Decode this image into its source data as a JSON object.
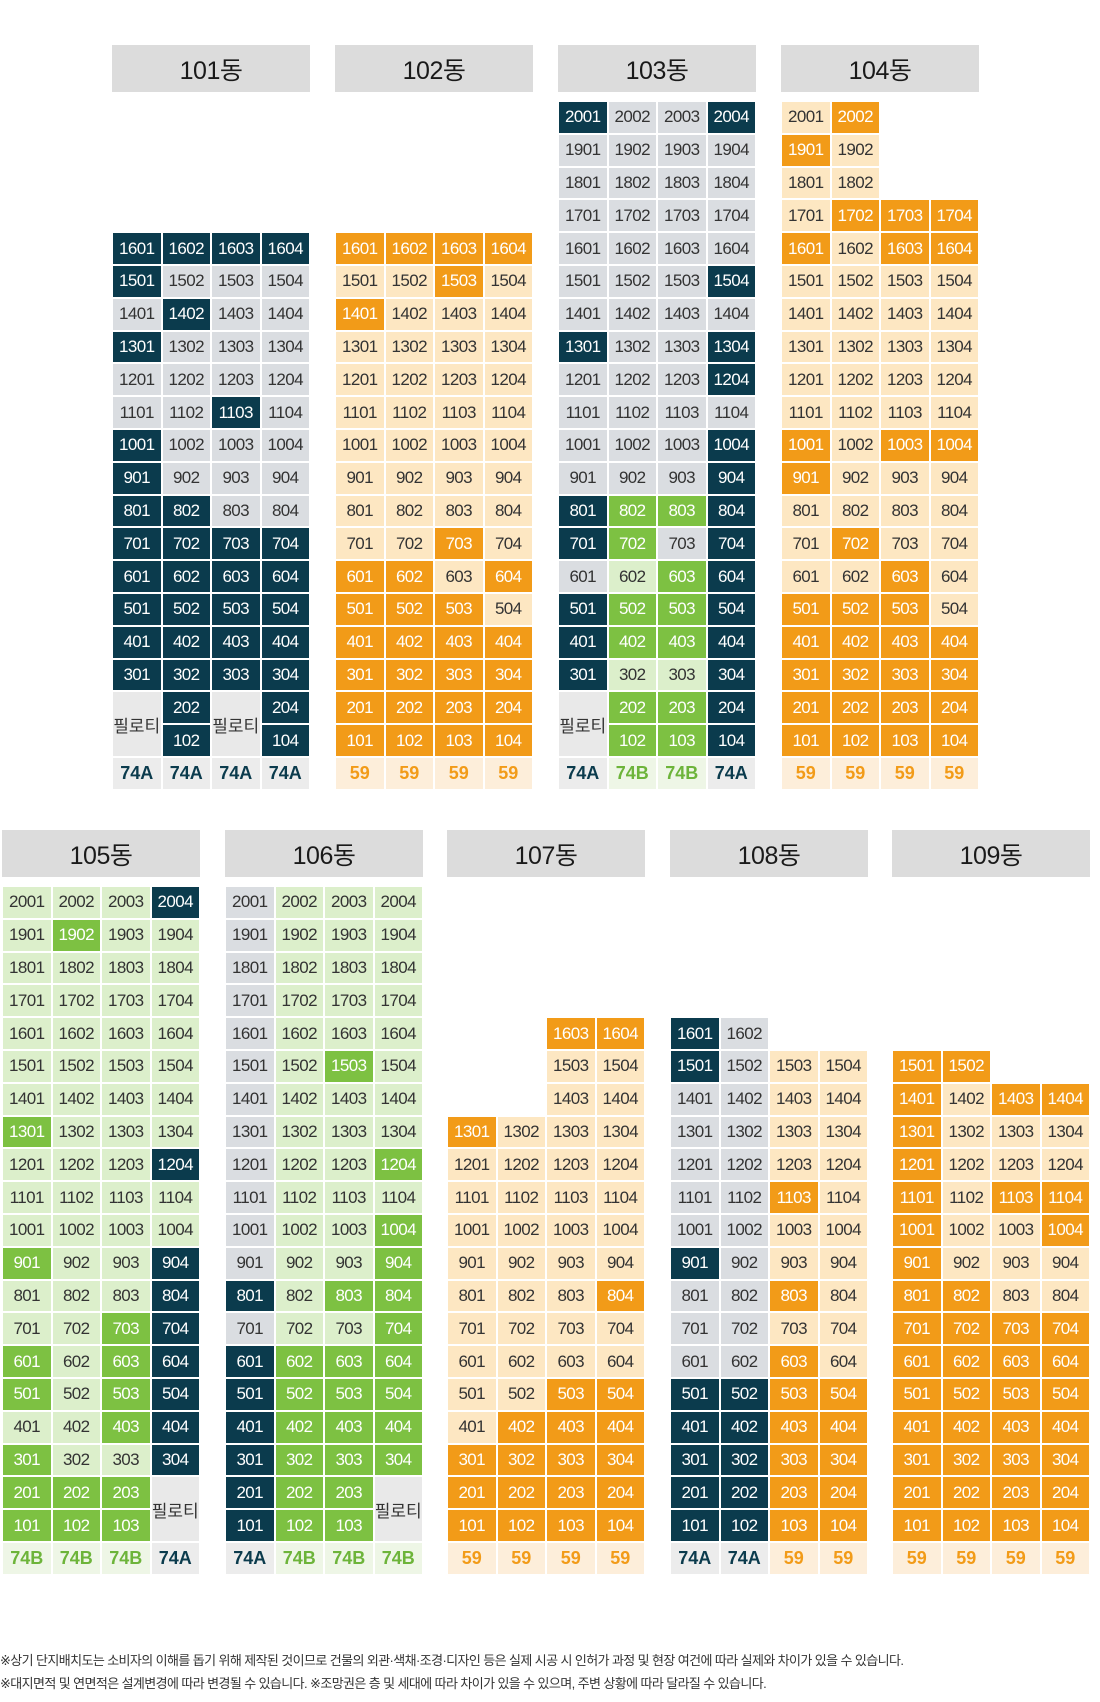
{
  "colors": {
    "navy": "#0b3b4d",
    "grey": "#dadde1",
    "orange": "#f29b18",
    "cream": "#fde7c2",
    "green": "#7dc142",
    "lightgreen": "#dcefcb"
  },
  "legend_codes": {
    "n": "navy",
    "g": "grey",
    "o": "orange",
    "c": "cream",
    "G": "green",
    "L": "lightgreen"
  },
  "buildings": [
    {
      "name": "101동",
      "rows": [
        {
          "f": 16,
          "c": "nnnn"
        },
        {
          "f": 15,
          "c": "nggg"
        },
        {
          "f": 14,
          "c": "gngg"
        },
        {
          "f": 13,
          "c": "nggg"
        },
        {
          "f": 12,
          "c": "gggg"
        },
        {
          "f": 11,
          "c": "ggng"
        },
        {
          "f": 10,
          "c": "nggg"
        },
        {
          "f": 9,
          "c": "nggg"
        },
        {
          "f": 8,
          "c": "nngg"
        },
        {
          "f": 7,
          "c": "nnnn"
        },
        {
          "f": 6,
          "c": "nnnn"
        },
        {
          "f": 5,
          "c": "nnnn"
        },
        {
          "f": 4,
          "c": "nnnn"
        },
        {
          "f": 3,
          "c": "nnnn"
        },
        {
          "f": 2,
          "c": "PnPn"
        },
        {
          "f": 1,
          "c": "PnPn"
        }
      ],
      "pilotis": [
        0,
        2
      ],
      "types": [
        "74A",
        "74A",
        "74A",
        "74A"
      ]
    },
    {
      "name": "102동",
      "rows": [
        {
          "f": 16,
          "c": "oooo"
        },
        {
          "f": 15,
          "c": "ccoc"
        },
        {
          "f": 14,
          "c": "occc"
        },
        {
          "f": 13,
          "c": "cccc"
        },
        {
          "f": 12,
          "c": "cccc"
        },
        {
          "f": 11,
          "c": "cccc"
        },
        {
          "f": 10,
          "c": "cccc"
        },
        {
          "f": 9,
          "c": "cccc"
        },
        {
          "f": 8,
          "c": "cccc"
        },
        {
          "f": 7,
          "c": "ccoc"
        },
        {
          "f": 6,
          "c": "oocO"
        },
        {
          "f": 5,
          "c": "oooc"
        },
        {
          "f": 4,
          "c": "oooo"
        },
        {
          "f": 3,
          "c": "oooo"
        },
        {
          "f": 2,
          "c": "oooo"
        },
        {
          "f": 1,
          "c": "oooo"
        }
      ],
      "pilotis": [],
      "types": [
        "59",
        "59",
        "59",
        "59"
      ]
    },
    {
      "name": "103동",
      "rows": [
        {
          "f": 20,
          "c": "nggn"
        },
        {
          "f": 19,
          "c": "gggg"
        },
        {
          "f": 18,
          "c": "gggg"
        },
        {
          "f": 17,
          "c": "gggg"
        },
        {
          "f": 16,
          "c": "gggg"
        },
        {
          "f": 15,
          "c": "gggn"
        },
        {
          "f": 14,
          "c": "gggg"
        },
        {
          "f": 13,
          "c": "nggn"
        },
        {
          "f": 12,
          "c": "gggn"
        },
        {
          "f": 11,
          "c": "gggg"
        },
        {
          "f": 10,
          "c": "gggn"
        },
        {
          "f": 9,
          "c": "gggn"
        },
        {
          "f": 8,
          "c": "nGGn"
        },
        {
          "f": 7,
          "c": "nGgn"
        },
        {
          "f": 6,
          "c": "gLGn"
        },
        {
          "f": 5,
          "c": "nGGn"
        },
        {
          "f": 4,
          "c": "nGGn"
        },
        {
          "f": 3,
          "c": "nLLn"
        },
        {
          "f": 2,
          "c": "PGGn"
        },
        {
          "f": 1,
          "c": "PGGn"
        }
      ],
      "pilotis": [
        0
      ],
      "types": [
        "74A",
        "74B",
        "74B",
        "74A"
      ]
    },
    {
      "name": "104동",
      "rows": [
        {
          "f": 20,
          "c": "co"
        },
        {
          "f": 19,
          "c": "oc"
        },
        {
          "f": 18,
          "c": "cc"
        },
        {
          "f": 17,
          "c": "cooo"
        },
        {
          "f": 16,
          "c": "ocoo"
        },
        {
          "f": 15,
          "c": "cccc"
        },
        {
          "f": 14,
          "c": "cccc"
        },
        {
          "f": 13,
          "c": "cccc"
        },
        {
          "f": 12,
          "c": "cccc"
        },
        {
          "f": 11,
          "c": "cccc"
        },
        {
          "f": 10,
          "c": "ocoo"
        },
        {
          "f": 9,
          "c": "occc"
        },
        {
          "f": 8,
          "c": "cccc"
        },
        {
          "f": 7,
          "c": "cocc"
        },
        {
          "f": 6,
          "c": "ccoc"
        },
        {
          "f": 5,
          "c": "oooc"
        },
        {
          "f": 4,
          "c": "oooo"
        },
        {
          "f": 3,
          "c": "oooo"
        },
        {
          "f": 2,
          "c": "oooo"
        },
        {
          "f": 1,
          "c": "oooo"
        }
      ],
      "pilotis": [],
      "types": [
        "59",
        "59",
        "59",
        "59"
      ]
    },
    {
      "name": "105동",
      "rows": [
        {
          "f": 20,
          "c": "LLLn"
        },
        {
          "f": 19,
          "c": "LGLL"
        },
        {
          "f": 18,
          "c": "LLLL"
        },
        {
          "f": 17,
          "c": "LLLL"
        },
        {
          "f": 16,
          "c": "LLLL"
        },
        {
          "f": 15,
          "c": "LLLL"
        },
        {
          "f": 14,
          "c": "LLLL"
        },
        {
          "f": 13,
          "c": "GLLL"
        },
        {
          "f": 12,
          "c": "LLLn"
        },
        {
          "f": 11,
          "c": "LLLL"
        },
        {
          "f": 10,
          "c": "LLLL"
        },
        {
          "f": 9,
          "c": "GLLn"
        },
        {
          "f": 8,
          "c": "LLLn"
        },
        {
          "f": 7,
          "c": "LLGn"
        },
        {
          "f": 6,
          "c": "GLGn"
        },
        {
          "f": 5,
          "c": "GLGn"
        },
        {
          "f": 4,
          "c": "LLGn"
        },
        {
          "f": 3,
          "c": "GLLn"
        },
        {
          "f": 2,
          "c": "GGGP"
        },
        {
          "f": 1,
          "c": "GGGP"
        }
      ],
      "pilotis": [
        3
      ],
      "types": [
        "74B",
        "74B",
        "74B",
        "74A"
      ]
    },
    {
      "name": "106동",
      "rows": [
        {
          "f": 20,
          "c": "gLLL"
        },
        {
          "f": 19,
          "c": "gLLL"
        },
        {
          "f": 18,
          "c": "gLLL"
        },
        {
          "f": 17,
          "c": "gLLL"
        },
        {
          "f": 16,
          "c": "gLLL"
        },
        {
          "f": 15,
          "c": "gLGL"
        },
        {
          "f": 14,
          "c": "gLLL"
        },
        {
          "f": 13,
          "c": "gLLL"
        },
        {
          "f": 12,
          "c": "gLLG"
        },
        {
          "f": 11,
          "c": "gLLL"
        },
        {
          "f": 10,
          "c": "gLLG"
        },
        {
          "f": 9,
          "c": "gLLG"
        },
        {
          "f": 8,
          "c": "nLGG"
        },
        {
          "f": 7,
          "c": "gLLG"
        },
        {
          "f": 6,
          "c": "nGGG"
        },
        {
          "f": 5,
          "c": "nGGG"
        },
        {
          "f": 4,
          "c": "nGGG"
        },
        {
          "f": 3,
          "c": "nGGG"
        },
        {
          "f": 2,
          "c": "nGGP"
        },
        {
          "f": 1,
          "c": "nGGP"
        }
      ],
      "pilotis": [
        3
      ],
      "types": [
        "74A",
        "74B",
        "74B",
        "74B"
      ]
    },
    {
      "name": "107동",
      "rows": [
        {
          "f": 16,
          "c": "  oo"
        },
        {
          "f": 15,
          "c": "  cc"
        },
        {
          "f": 14,
          "c": "  cc"
        },
        {
          "f": 13,
          "c": "occc"
        },
        {
          "f": 12,
          "c": "cccc"
        },
        {
          "f": 11,
          "c": "cccc"
        },
        {
          "f": 10,
          "c": "cccc"
        },
        {
          "f": 9,
          "c": "cccc"
        },
        {
          "f": 8,
          "c": "ccco"
        },
        {
          "f": 7,
          "c": "cccc"
        },
        {
          "f": 6,
          "c": "cccc"
        },
        {
          "f": 5,
          "c": "ccoo"
        },
        {
          "f": 4,
          "c": "cooo"
        },
        {
          "f": 3,
          "c": "oooo"
        },
        {
          "f": 2,
          "c": "oooo"
        },
        {
          "f": 1,
          "c": "oooo"
        }
      ],
      "pilotis": [],
      "types": [
        "59",
        "59",
        "59",
        "59"
      ]
    },
    {
      "name": "108동",
      "rows": [
        {
          "f": 16,
          "c": "ng"
        },
        {
          "f": 15,
          "c": "ngcc"
        },
        {
          "f": 14,
          "c": "ggcc"
        },
        {
          "f": 13,
          "c": "ggcc"
        },
        {
          "f": 12,
          "c": "ggcc"
        },
        {
          "f": 11,
          "c": "ggoc"
        },
        {
          "f": 10,
          "c": "ggcc"
        },
        {
          "f": 9,
          "c": "ngcc"
        },
        {
          "f": 8,
          "c": "ggoc"
        },
        {
          "f": 7,
          "c": "ggcc"
        },
        {
          "f": 6,
          "c": "ggoc"
        },
        {
          "f": 5,
          "c": "nnoo"
        },
        {
          "f": 4,
          "c": "nnoo"
        },
        {
          "f": 3,
          "c": "nnoo"
        },
        {
          "f": 2,
          "c": "nnoo"
        },
        {
          "f": 1,
          "c": "nnoo"
        }
      ],
      "pilotis": [],
      "types": [
        "74A",
        "74A",
        "59",
        "59"
      ]
    },
    {
      "name": "109동",
      "rows": [
        {
          "f": 15,
          "c": "oo"
        },
        {
          "f": 14,
          "c": "ocoo"
        },
        {
          "f": 13,
          "c": "occc"
        },
        {
          "f": 12,
          "c": "occc"
        },
        {
          "f": 11,
          "c": "ocoo"
        },
        {
          "f": 10,
          "c": "occo"
        },
        {
          "f": 9,
          "c": "occc"
        },
        {
          "f": 8,
          "c": "oocc"
        },
        {
          "f": 7,
          "c": "oooo"
        },
        {
          "f": 6,
          "c": "oooo"
        },
        {
          "f": 5,
          "c": "oooo"
        },
        {
          "f": 4,
          "c": "oooo"
        },
        {
          "f": 3,
          "c": "oooo"
        },
        {
          "f": 2,
          "c": "oooo"
        },
        {
          "f": 1,
          "c": "oooo"
        }
      ],
      "pilotis": [],
      "types": [
        "59",
        "59",
        "59",
        "59"
      ]
    }
  ],
  "pilotis_label": "필로티",
  "notes": [
    "※상기 단지배치도는 소비자의 이해를 돕기 위해 제작된 것이므로 건물의 외관·색채·조경·디자인 등은 실제 시공 시 인허가 과정 및 현장 여건에 따라 실제와 차이가 있을 수 있습니다.",
    "※대지면적 및 연면적은 설계변경에 따라 변경될 수 있습니다. ※조망권은 층 및 세대에 따라 차이가 있을 수 있으며, 주변 상황에 따라 달라질 수 있습니다."
  ]
}
